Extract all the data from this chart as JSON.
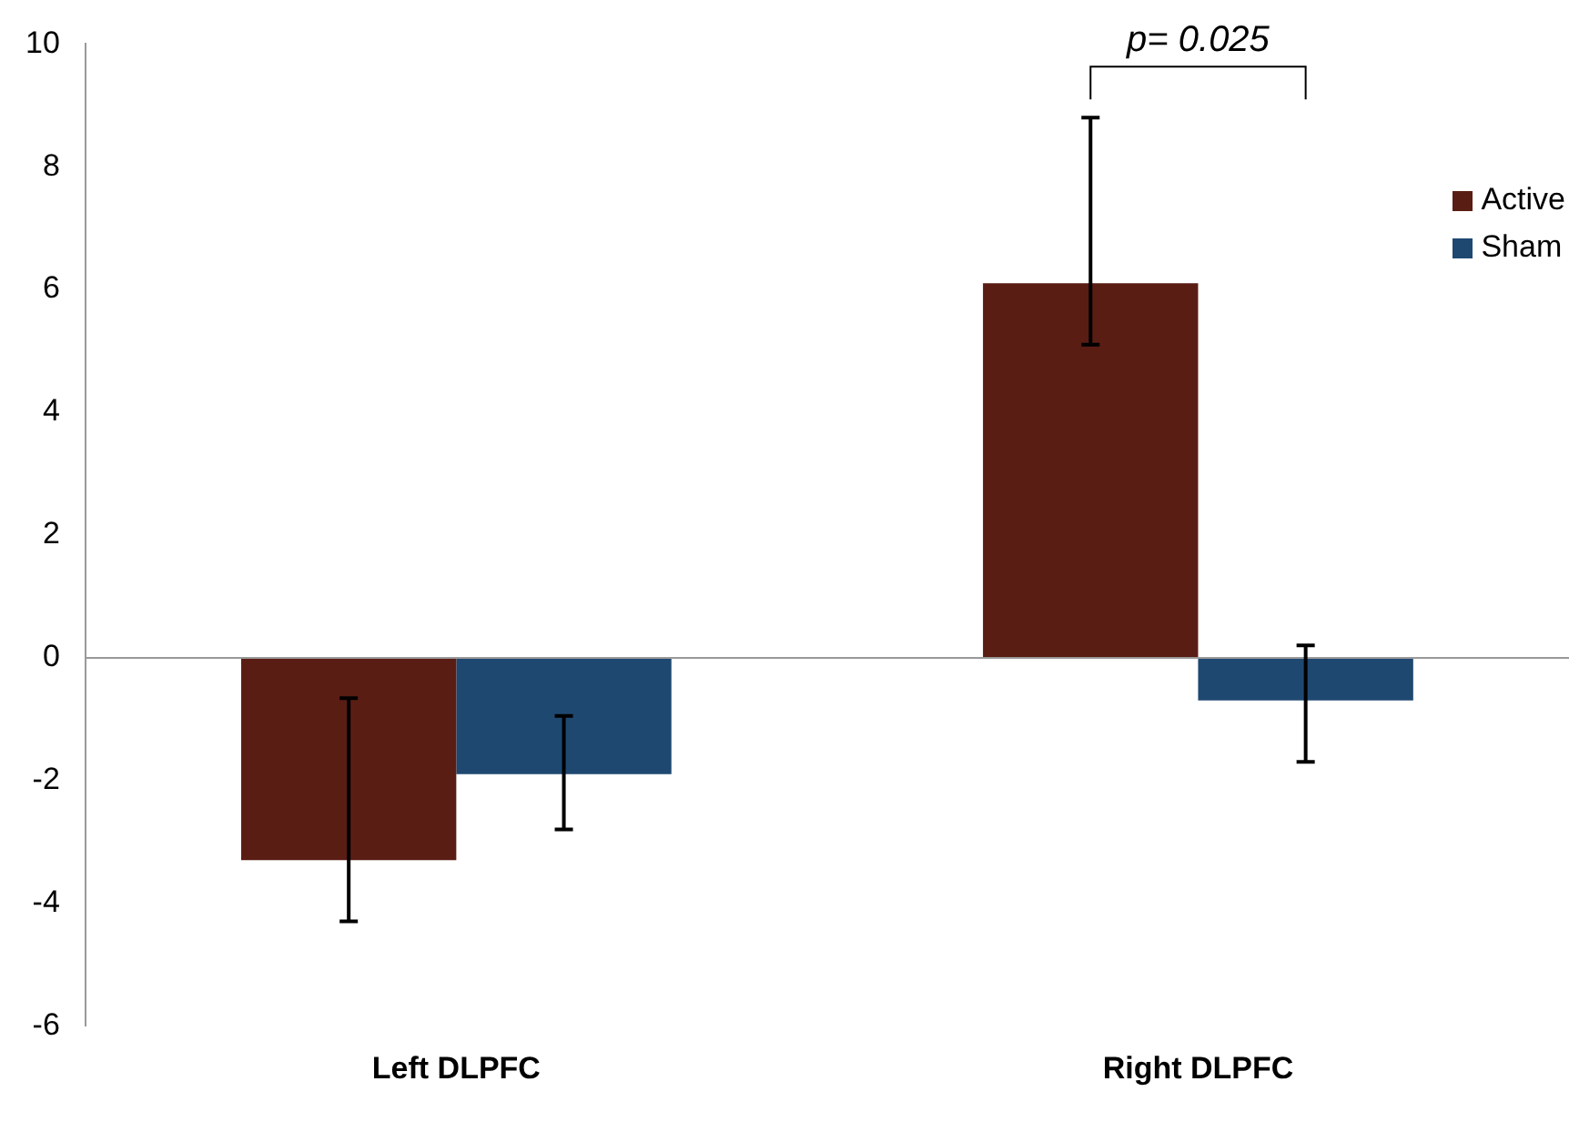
{
  "chart_data": {
    "type": "bar",
    "categories": [
      "Left DLPFC",
      "Right DLPFC"
    ],
    "series": [
      {
        "name": "Active",
        "color": "#5a1d14",
        "values": [
          -3.3,
          6.1
        ],
        "errors": [
          [
            -4.3,
            -0.66
          ],
          [
            5.1,
            8.8
          ]
        ]
      },
      {
        "name": "Sham",
        "color": "#1f4871",
        "values": [
          -1.9,
          -0.7
        ],
        "errors": [
          [
            -2.8,
            -0.95
          ],
          [
            -1.7,
            0.2
          ]
        ]
      }
    ],
    "ylim": [
      -6,
      10
    ],
    "yticks": [
      -6,
      -4,
      -2,
      0,
      2,
      4,
      6,
      8,
      10
    ],
    "grid": false,
    "legend": "top right",
    "ref_lines": [
      {
        "axis": "y",
        "value": 0,
        "color": "#999999"
      }
    ],
    "annotations": [
      "p= 0.025"
    ]
  }
}
